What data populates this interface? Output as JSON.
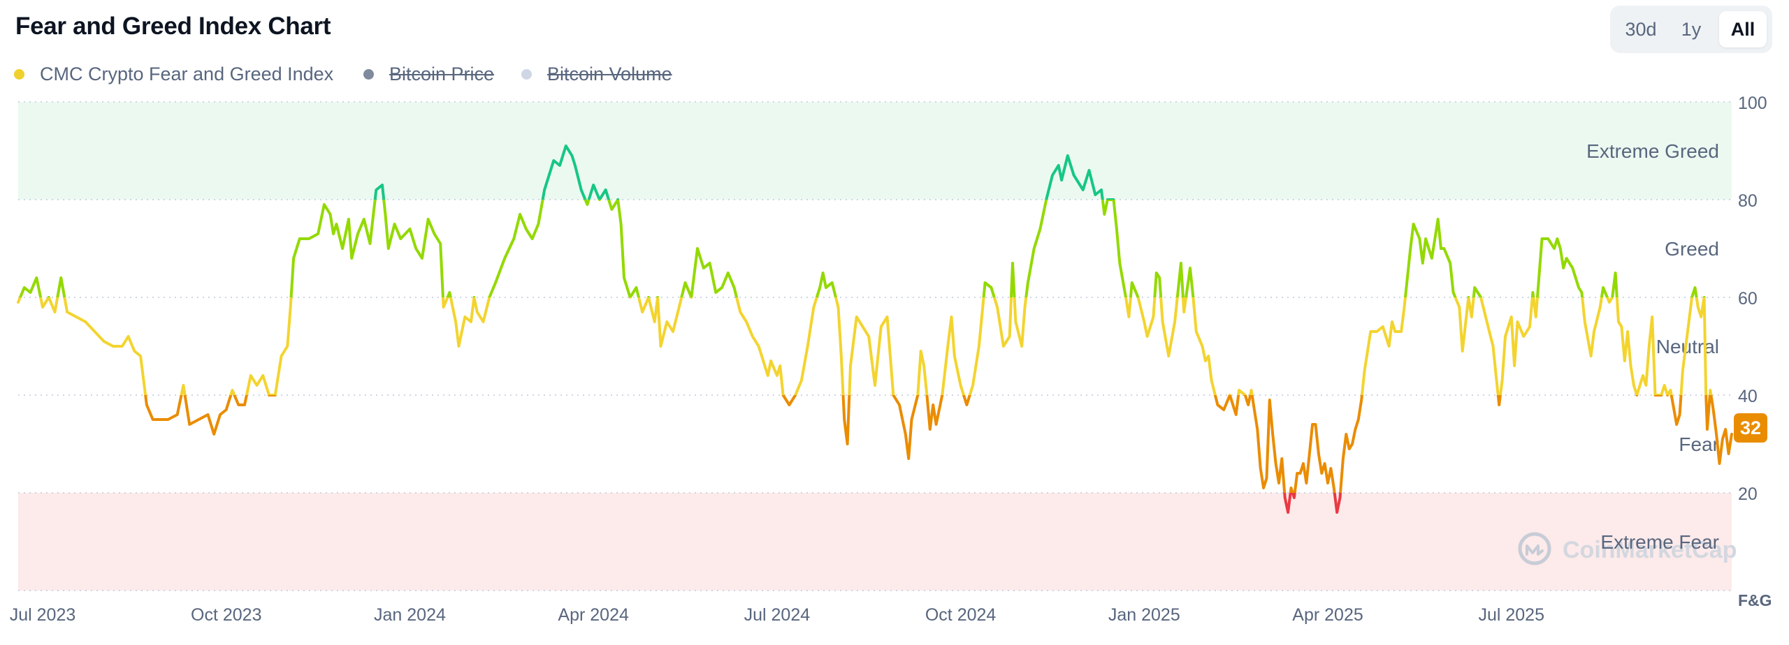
{
  "title": "Fear and Greed Index Chart",
  "range_buttons": [
    {
      "label": "30d",
      "active": false
    },
    {
      "label": "1y",
      "active": false
    },
    {
      "label": "All",
      "active": true
    }
  ],
  "legend": [
    {
      "label": "CMC Crypto Fear and Greed Index",
      "color": "#f0d02c",
      "enabled": true
    },
    {
      "label": "Bitcoin Price",
      "color": "#808a9d",
      "enabled": false
    },
    {
      "label": "Bitcoin Volume",
      "color": "#cfd6e4",
      "enabled": false
    }
  ],
  "watermark": "CoinMarketCap",
  "colors": {
    "extreme_fear": "#ea3943",
    "fear": "#ea8c00",
    "neutral": "#f3d42f",
    "greed": "#93d900",
    "extreme_greed": "#16c784",
    "band_greed": "#ecf9f1",
    "band_fear": "#fdeaea",
    "grid": "#cfd6e4",
    "axis_text": "#58667e"
  },
  "chart_data": {
    "type": "line",
    "title": "Fear and Greed Index Chart",
    "series_name": "CMC Crypto Fear and Greed Index",
    "ylim": [
      0,
      100
    ],
    "yticks": [
      100,
      80,
      60,
      40,
      20
    ],
    "y_axis_label": "F&G",
    "xlim_month_index": [
      -0.4,
      27.6
    ],
    "x_tick_labels": [
      {
        "label": "Jul 2023",
        "month_index": 0
      },
      {
        "label": "Oct 2023",
        "month_index": 3
      },
      {
        "label": "Jan 2024",
        "month_index": 6
      },
      {
        "label": "Apr 2024",
        "month_index": 9
      },
      {
        "label": "Jul 2024",
        "month_index": 12
      },
      {
        "label": "Oct 2024",
        "month_index": 15
      },
      {
        "label": "Jan 2025",
        "month_index": 18
      },
      {
        "label": "Apr 2025",
        "month_index": 21
      },
      {
        "label": "Jul 2025",
        "month_index": 24
      }
    ],
    "zones": [
      {
        "label": "Extreme Greed",
        "from": 80,
        "to": 100
      },
      {
        "label": "Greed",
        "from": 60,
        "to": 80
      },
      {
        "label": "Neutral",
        "from": 40,
        "to": 60
      },
      {
        "label": "Fear",
        "from": 20,
        "to": 40
      },
      {
        "label": "Extreme Fear",
        "from": 0,
        "to": 20
      }
    ],
    "current_value": 32,
    "points": [
      [
        -0.4,
        59
      ],
      [
        -0.3,
        62
      ],
      [
        -0.2,
        61
      ],
      [
        -0.1,
        64
      ],
      [
        0.0,
        58
      ],
      [
        0.1,
        60
      ],
      [
        0.2,
        57
      ],
      [
        0.3,
        64
      ],
      [
        0.4,
        57
      ],
      [
        0.55,
        56
      ],
      [
        0.7,
        55
      ],
      [
        0.85,
        53
      ],
      [
        1.0,
        51
      ],
      [
        1.15,
        50
      ],
      [
        1.3,
        50
      ],
      [
        1.4,
        52
      ],
      [
        1.5,
        49
      ],
      [
        1.6,
        48
      ],
      [
        1.7,
        38
      ],
      [
        1.8,
        35
      ],
      [
        1.9,
        35
      ],
      [
        2.05,
        35
      ],
      [
        2.2,
        36
      ],
      [
        2.3,
        42
      ],
      [
        2.4,
        34
      ],
      [
        2.55,
        35
      ],
      [
        2.7,
        36
      ],
      [
        2.8,
        32
      ],
      [
        2.9,
        36
      ],
      [
        3.0,
        37
      ],
      [
        3.1,
        41
      ],
      [
        3.2,
        38
      ],
      [
        3.3,
        38
      ],
      [
        3.4,
        44
      ],
      [
        3.5,
        42
      ],
      [
        3.6,
        44
      ],
      [
        3.7,
        40
      ],
      [
        3.8,
        40
      ],
      [
        3.9,
        48
      ],
      [
        4.0,
        50
      ],
      [
        4.05,
        58
      ],
      [
        4.1,
        68
      ],
      [
        4.2,
        72
      ],
      [
        4.35,
        72
      ],
      [
        4.5,
        73
      ],
      [
        4.6,
        79
      ],
      [
        4.7,
        77
      ],
      [
        4.75,
        73
      ],
      [
        4.8,
        75
      ],
      [
        4.9,
        70
      ],
      [
        5.0,
        76
      ],
      [
        5.05,
        68
      ],
      [
        5.15,
        73
      ],
      [
        5.25,
        76
      ],
      [
        5.35,
        71
      ],
      [
        5.45,
        82
      ],
      [
        5.55,
        83
      ],
      [
        5.6,
        77
      ],
      [
        5.65,
        70
      ],
      [
        5.75,
        75
      ],
      [
        5.85,
        72
      ],
      [
        6.0,
        74
      ],
      [
        6.1,
        70
      ],
      [
        6.2,
        68
      ],
      [
        6.3,
        76
      ],
      [
        6.4,
        73
      ],
      [
        6.5,
        71
      ],
      [
        6.55,
        58
      ],
      [
        6.65,
        61
      ],
      [
        6.75,
        55
      ],
      [
        6.8,
        50
      ],
      [
        6.9,
        56
      ],
      [
        7.0,
        55
      ],
      [
        7.05,
        60
      ],
      [
        7.1,
        57
      ],
      [
        7.2,
        55
      ],
      [
        7.3,
        60
      ],
      [
        7.4,
        63
      ],
      [
        7.55,
        68
      ],
      [
        7.7,
        72
      ],
      [
        7.8,
        77
      ],
      [
        7.9,
        74
      ],
      [
        8.0,
        72
      ],
      [
        8.1,
        75
      ],
      [
        8.2,
        82
      ],
      [
        8.35,
        88
      ],
      [
        8.45,
        87
      ],
      [
        8.55,
        91
      ],
      [
        8.65,
        89
      ],
      [
        8.7,
        87
      ],
      [
        8.8,
        82
      ],
      [
        8.9,
        79
      ],
      [
        9.0,
        83
      ],
      [
        9.1,
        80
      ],
      [
        9.2,
        82
      ],
      [
        9.3,
        78
      ],
      [
        9.4,
        80
      ],
      [
        9.45,
        75
      ],
      [
        9.5,
        64
      ],
      [
        9.6,
        60
      ],
      [
        9.7,
        62
      ],
      [
        9.8,
        57
      ],
      [
        9.9,
        60
      ],
      [
        10.0,
        55
      ],
      [
        10.05,
        60
      ],
      [
        10.1,
        50
      ],
      [
        10.2,
        55
      ],
      [
        10.3,
        53
      ],
      [
        10.4,
        58
      ],
      [
        10.5,
        63
      ],
      [
        10.6,
        60
      ],
      [
        10.7,
        70
      ],
      [
        10.8,
        66
      ],
      [
        10.9,
        67
      ],
      [
        11.0,
        61
      ],
      [
        11.1,
        62
      ],
      [
        11.2,
        65
      ],
      [
        11.3,
        62
      ],
      [
        11.4,
        57
      ],
      [
        11.5,
        55
      ],
      [
        11.6,
        52
      ],
      [
        11.7,
        50
      ],
      [
        11.8,
        46
      ],
      [
        11.85,
        44
      ],
      [
        11.9,
        47
      ],
      [
        12.0,
        44
      ],
      [
        12.05,
        46
      ],
      [
        12.1,
        40
      ],
      [
        12.2,
        38
      ],
      [
        12.3,
        40
      ],
      [
        12.4,
        43
      ],
      [
        12.5,
        50
      ],
      [
        12.6,
        58
      ],
      [
        12.7,
        62
      ],
      [
        12.75,
        65
      ],
      [
        12.8,
        62
      ],
      [
        12.9,
        63
      ],
      [
        13.0,
        58
      ],
      [
        13.05,
        48
      ],
      [
        13.1,
        35
      ],
      [
        13.15,
        30
      ],
      [
        13.2,
        46
      ],
      [
        13.3,
        56
      ],
      [
        13.4,
        54
      ],
      [
        13.5,
        52
      ],
      [
        13.55,
        47
      ],
      [
        13.6,
        42
      ],
      [
        13.7,
        54
      ],
      [
        13.8,
        56
      ],
      [
        13.85,
        48
      ],
      [
        13.9,
        40
      ],
      [
        14.0,
        38
      ],
      [
        14.1,
        32
      ],
      [
        14.15,
        27
      ],
      [
        14.2,
        35
      ],
      [
        14.3,
        40
      ],
      [
        14.35,
        49
      ],
      [
        14.4,
        46
      ],
      [
        14.45,
        40
      ],
      [
        14.5,
        33
      ],
      [
        14.55,
        38
      ],
      [
        14.6,
        34
      ],
      [
        14.7,
        40
      ],
      [
        14.8,
        51
      ],
      [
        14.85,
        56
      ],
      [
        14.9,
        48
      ],
      [
        15.0,
        42
      ],
      [
        15.05,
        40
      ],
      [
        15.1,
        38
      ],
      [
        15.2,
        42
      ],
      [
        15.3,
        50
      ],
      [
        15.4,
        63
      ],
      [
        15.5,
        62
      ],
      [
        15.6,
        58
      ],
      [
        15.7,
        50
      ],
      [
        15.8,
        52
      ],
      [
        15.85,
        67
      ],
      [
        15.9,
        55
      ],
      [
        16.0,
        50
      ],
      [
        16.05,
        58
      ],
      [
        16.1,
        63
      ],
      [
        16.2,
        70
      ],
      [
        16.3,
        74
      ],
      [
        16.4,
        80
      ],
      [
        16.5,
        85
      ],
      [
        16.6,
        87
      ],
      [
        16.65,
        84
      ],
      [
        16.75,
        89
      ],
      [
        16.85,
        85
      ],
      [
        16.9,
        84
      ],
      [
        17.0,
        82
      ],
      [
        17.1,
        86
      ],
      [
        17.2,
        81
      ],
      [
        17.3,
        82
      ],
      [
        17.35,
        77
      ],
      [
        17.4,
        80
      ],
      [
        17.5,
        80
      ],
      [
        17.55,
        74
      ],
      [
        17.6,
        67
      ],
      [
        17.7,
        60
      ],
      [
        17.75,
        56
      ],
      [
        17.8,
        63
      ],
      [
        17.9,
        60
      ],
      [
        18.0,
        55
      ],
      [
        18.05,
        52
      ],
      [
        18.15,
        56
      ],
      [
        18.2,
        65
      ],
      [
        18.25,
        64
      ],
      [
        18.3,
        55
      ],
      [
        18.4,
        48
      ],
      [
        18.5,
        55
      ],
      [
        18.6,
        67
      ],
      [
        18.65,
        57
      ],
      [
        18.75,
        66
      ],
      [
        18.8,
        60
      ],
      [
        18.85,
        53
      ],
      [
        18.95,
        50
      ],
      [
        19.0,
        47
      ],
      [
        19.05,
        48
      ],
      [
        19.1,
        43
      ],
      [
        19.2,
        38
      ],
      [
        19.3,
        37
      ],
      [
        19.4,
        40
      ],
      [
        19.5,
        36
      ],
      [
        19.55,
        41
      ],
      [
        19.65,
        40
      ],
      [
        19.7,
        38
      ],
      [
        19.75,
        41
      ],
      [
        19.8,
        37
      ],
      [
        19.85,
        33
      ],
      [
        19.9,
        25
      ],
      [
        19.95,
        21
      ],
      [
        20.0,
        23
      ],
      [
        20.05,
        39
      ],
      [
        20.1,
        32
      ],
      [
        20.15,
        26
      ],
      [
        20.2,
        22
      ],
      [
        20.25,
        27
      ],
      [
        20.3,
        19
      ],
      [
        20.35,
        16
      ],
      [
        20.4,
        21
      ],
      [
        20.45,
        19
      ],
      [
        20.5,
        24
      ],
      [
        20.55,
        24
      ],
      [
        20.6,
        26
      ],
      [
        20.65,
        22
      ],
      [
        20.7,
        28
      ],
      [
        20.75,
        34
      ],
      [
        20.8,
        34
      ],
      [
        20.85,
        28
      ],
      [
        20.9,
        24
      ],
      [
        20.95,
        26
      ],
      [
        21.0,
        22
      ],
      [
        21.05,
        25
      ],
      [
        21.1,
        21
      ],
      [
        21.15,
        16
      ],
      [
        21.2,
        19
      ],
      [
        21.25,
        27
      ],
      [
        21.3,
        32
      ],
      [
        21.35,
        29
      ],
      [
        21.4,
        30
      ],
      [
        21.45,
        33
      ],
      [
        21.5,
        35
      ],
      [
        21.55,
        39
      ],
      [
        21.6,
        45
      ],
      [
        21.7,
        53
      ],
      [
        21.8,
        53
      ],
      [
        21.9,
        54
      ],
      [
        22.0,
        50
      ],
      [
        22.05,
        55
      ],
      [
        22.1,
        53
      ],
      [
        22.2,
        53
      ],
      [
        22.25,
        58
      ],
      [
        22.35,
        70
      ],
      [
        22.4,
        75
      ],
      [
        22.5,
        72
      ],
      [
        22.55,
        67
      ],
      [
        22.6,
        72
      ],
      [
        22.7,
        68
      ],
      [
        22.8,
        76
      ],
      [
        22.85,
        70
      ],
      [
        22.9,
        70
      ],
      [
        23.0,
        67
      ],
      [
        23.05,
        61
      ],
      [
        23.15,
        58
      ],
      [
        23.2,
        49
      ],
      [
        23.3,
        60
      ],
      [
        23.35,
        56
      ],
      [
        23.4,
        62
      ],
      [
        23.5,
        60
      ],
      [
        23.6,
        55
      ],
      [
        23.7,
        50
      ],
      [
        23.75,
        44
      ],
      [
        23.8,
        38
      ],
      [
        23.85,
        43
      ],
      [
        23.9,
        52
      ],
      [
        24.0,
        56
      ],
      [
        24.05,
        46
      ],
      [
        24.1,
        55
      ],
      [
        24.2,
        52
      ],
      [
        24.3,
        54
      ],
      [
        24.35,
        61
      ],
      [
        24.4,
        56
      ],
      [
        24.5,
        72
      ],
      [
        24.6,
        72
      ],
      [
        24.7,
        70
      ],
      [
        24.75,
        72
      ],
      [
        24.8,
        70
      ],
      [
        24.85,
        66
      ],
      [
        24.9,
        68
      ],
      [
        25.0,
        66
      ],
      [
        25.05,
        64
      ],
      [
        25.1,
        62
      ],
      [
        25.15,
        61
      ],
      [
        25.2,
        55
      ],
      [
        25.3,
        48
      ],
      [
        25.35,
        53
      ],
      [
        25.45,
        58
      ],
      [
        25.5,
        62
      ],
      [
        25.6,
        59
      ],
      [
        25.65,
        60
      ],
      [
        25.7,
        65
      ],
      [
        25.75,
        55
      ],
      [
        25.8,
        54
      ],
      [
        25.85,
        47
      ],
      [
        25.9,
        53
      ],
      [
        25.95,
        46
      ],
      [
        26.0,
        42
      ],
      [
        26.05,
        40
      ],
      [
        26.15,
        44
      ],
      [
        26.2,
        42
      ],
      [
        26.25,
        50
      ],
      [
        26.3,
        56
      ],
      [
        26.35,
        40
      ],
      [
        26.45,
        40
      ],
      [
        26.5,
        42
      ],
      [
        26.55,
        40
      ],
      [
        26.6,
        41
      ],
      [
        26.7,
        34
      ],
      [
        26.75,
        36
      ],
      [
        26.8,
        45
      ],
      [
        26.9,
        55
      ],
      [
        26.95,
        60
      ],
      [
        27.0,
        62
      ],
      [
        27.05,
        58
      ],
      [
        27.1,
        56
      ],
      [
        27.15,
        60
      ],
      [
        27.18,
        40
      ],
      [
        27.2,
        33
      ],
      [
        27.25,
        41
      ],
      [
        27.3,
        37
      ],
      [
        27.35,
        32
      ],
      [
        27.4,
        26
      ],
      [
        27.45,
        31
      ],
      [
        27.5,
        33
      ],
      [
        27.55,
        28
      ],
      [
        27.6,
        32
      ]
    ]
  }
}
